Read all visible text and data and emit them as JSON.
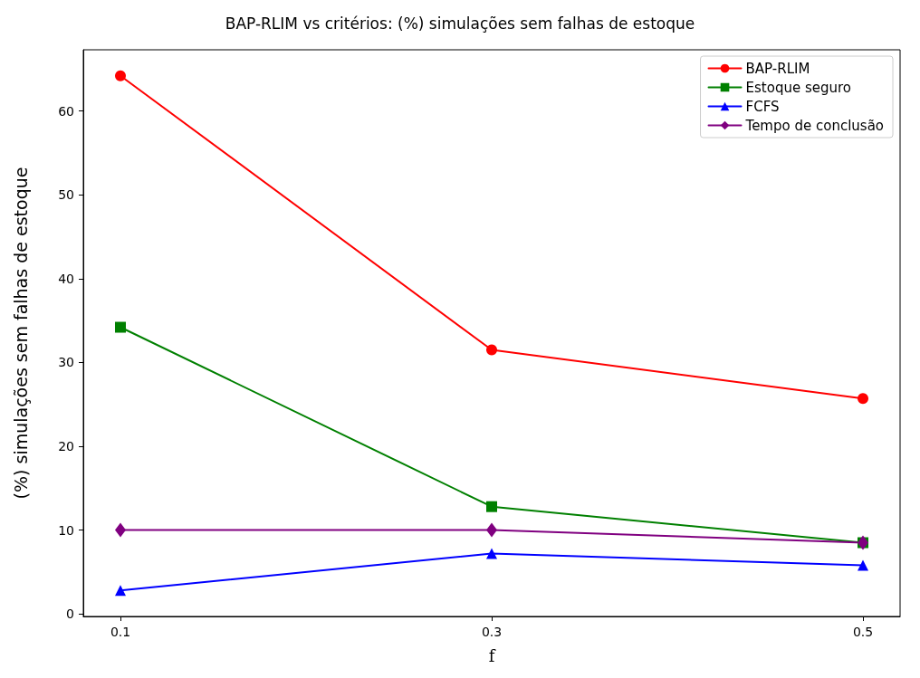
{
  "chart_data": {
    "type": "line",
    "title": "BAP-RLIM vs critérios: (%) simulações sem falhas de estoque",
    "xlabel": "f",
    "ylabel": "(%) simulações sem falhas de estoque",
    "x": [
      0.1,
      0.3,
      0.5
    ],
    "series": [
      {
        "name": "BAP-RLIM",
        "color": "#ff0000",
        "marker": "circle",
        "values": [
          64.2,
          31.5,
          25.7
        ]
      },
      {
        "name": "Estoque seguro",
        "color": "#008000",
        "marker": "square",
        "values": [
          34.2,
          12.8,
          8.5
        ]
      },
      {
        "name": "FCFS",
        "color": "#0000ff",
        "marker": "triangle",
        "values": [
          2.8,
          7.2,
          5.8
        ]
      },
      {
        "name": "Tempo de conclusão",
        "color": "#800080",
        "marker": "diamond",
        "values": [
          10.0,
          10.0,
          8.5
        ]
      }
    ],
    "xlim": [
      0.08,
      0.52
    ],
    "xticks": [
      0.1,
      0.3,
      0.5
    ],
    "ylim": [
      -0.3,
      67.3
    ],
    "yticks": [
      0,
      10,
      20,
      30,
      40,
      50,
      60
    ],
    "grid": false,
    "legend": "top right",
    "line_style": "solid"
  }
}
